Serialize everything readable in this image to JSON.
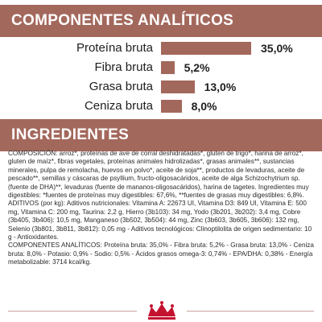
{
  "analytics": {
    "title": "COMPONENTES ANALÍTICOS",
    "max_value": 35.0,
    "rows": [
      {
        "label": "Proteína bruta",
        "value": 35.0,
        "value_text": "35,0%"
      },
      {
        "label": "Fibra bruta",
        "value": 5.2,
        "value_text": "5,2%"
      },
      {
        "label": "Grasa bruta",
        "value": 13.0,
        "value_text": "13,0%"
      },
      {
        "label": "Ceniza bruta",
        "value": 8.0,
        "value_text": "8,0%"
      }
    ],
    "bar_color": "#a3685c"
  },
  "ingredients": {
    "title": "INGREDIENTES",
    "composition": "COMPOSICIÓN: arroz*, proteínas de ave de corral deshidratadas*, gluten de trigo*, harina de arroz*, gluten de maíz*, fibras vegetales, proteínas animales hidrolizadas*, grasas animales**, sustancias minerales, pulpa de remolacha, huevos en polvo*, aceite de soja**, productos de levaduras, aceite de pescado**, semillas y cáscaras de psyllium, fructo-oligosacáridos, aceite de alga Schizochytrium sp. (fuente de DHA)**, levaduras (fuente de mananos-oligosacáridos), harina de tagetes. Ingredientes muy digestibles: *fuentes de proteínas muy digestibles: 67,6%, **fuentes de grasas muy digestibles: 6,8%.",
    "additives": "ADITIVOS (por kg): Aditivos nutricionales: Vitamina A: 22673 UI, Vitamina D3: 849 UI, Vitamina E: 500 mg, Vitamina C: 200 mg, Taurina: 2,2 g, Hierro (3b103): 34 mg, Yodo (3b201, 3b202): 3,4 mg, Cobre (3b405, 3b406): 10,5 mg, Manganeso (3b502, 3b504): 44 mg, Zinc (3b603, 3b605, 3b606): 132 mg, Selenio (3b801, 3b811, 3b812): 0,05 mg - Aditivos tecnológicos: Clinoptilolita de origen sedimentario: 10 g - Antioxidantes.",
    "analytical": "COMPONENTES ANALÍTICOS: Proteína bruta: 35,0% - Fibra bruta: 5,2% - Grasa bruta: 13,0% - Ceniza bruta: 8,0% - Potasio: 0,9% - Sodio: 0,5% - Ácidos grasos omega-3: 0,74% - EPA/DHA: 0,38% - Energía metabolizable: 3714 kcal/kg."
  },
  "footer": {
    "logo_icon": "royal-canin-crown-icon",
    "logo_color": "#c4122f"
  }
}
